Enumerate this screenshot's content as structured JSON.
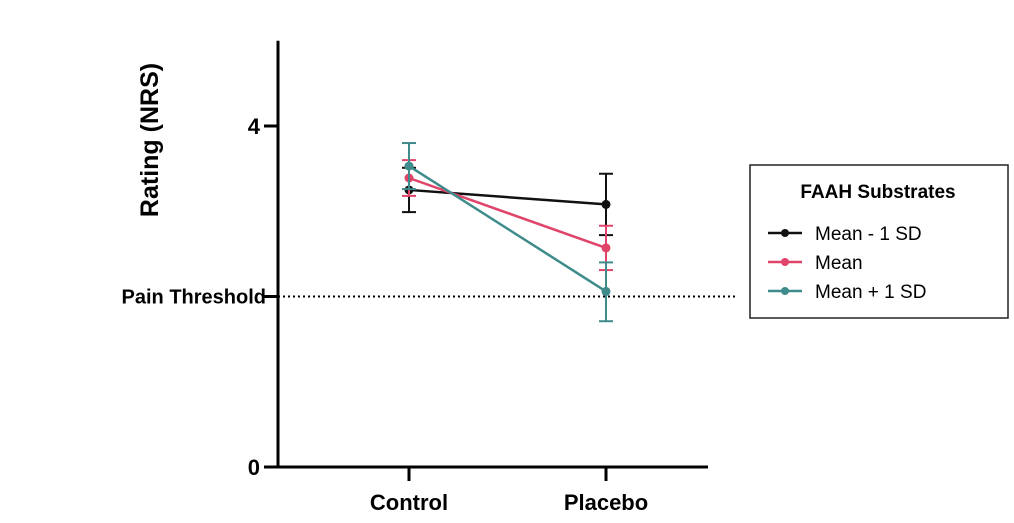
{
  "chart_data": {
    "type": "line",
    "title": "",
    "xlabel": "",
    "ylabel": "Rating (NRS)",
    "ylim": [
      0,
      5
    ],
    "yticks": [
      {
        "value": 0,
        "label": "0"
      },
      {
        "value": 2,
        "label": ""
      },
      {
        "value": 4,
        "label": "4"
      }
    ],
    "categories": [
      "Control",
      "Placebo"
    ],
    "reference_line": {
      "value": 2,
      "label": "Pain Threshold"
    },
    "legend": {
      "title": "FAAH Substrates",
      "placement": "right"
    },
    "series": [
      {
        "name": "Mean - 1 SD",
        "color": "#111111",
        "values": [
          3.25,
          3.08
        ],
        "err_low": [
          2.99,
          2.72
        ],
        "err_high": [
          3.51,
          3.44
        ]
      },
      {
        "name": "Mean",
        "color": "#e0446a",
        "values": [
          3.39,
          2.57
        ],
        "err_low": [
          3.18,
          2.31
        ],
        "err_high": [
          3.6,
          2.83
        ]
      },
      {
        "name": "Mean + 1 SD",
        "color": "#3f8a8a",
        "values": [
          3.53,
          2.06
        ],
        "err_low": [
          3.26,
          1.71
        ],
        "err_high": [
          3.8,
          2.4
        ]
      }
    ]
  }
}
